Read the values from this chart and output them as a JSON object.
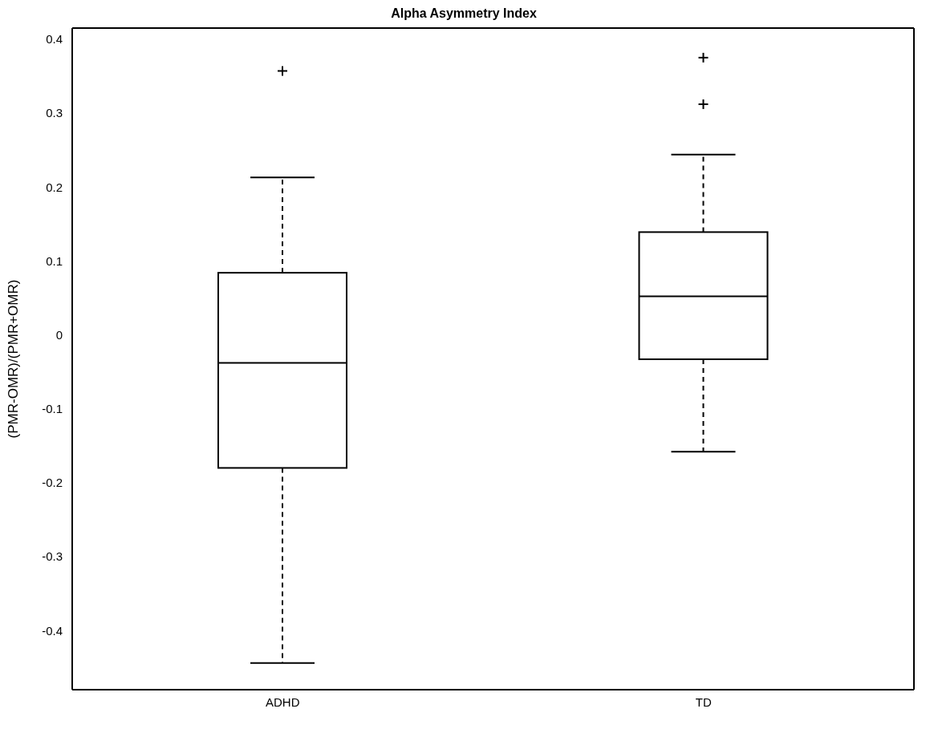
{
  "chart_data": {
    "type": "box",
    "title": "Alpha Asymmetry Index",
    "ylabel": "(PMR-OMR)/(PMR+OMR)",
    "categories": [
      "ADHD",
      "TD"
    ],
    "boxes": [
      {
        "low": -0.444,
        "q1": -0.18,
        "median": -0.038,
        "q3": 0.084,
        "high": 0.213,
        "outliers": [
          0.357
        ]
      },
      {
        "low": -0.158,
        "q1": -0.033,
        "median": 0.052,
        "q3": 0.139,
        "high": 0.244,
        "outliers": [
          0.375,
          0.312
        ]
      }
    ],
    "ylim": [
      -0.48,
      0.415
    ],
    "yticks": [
      -0.4,
      -0.3,
      -0.2,
      -0.1,
      0,
      0.1,
      0.2,
      0.3,
      0.4
    ],
    "grid": false,
    "legend": false,
    "marker": "cross",
    "line_style": "dashed"
  }
}
